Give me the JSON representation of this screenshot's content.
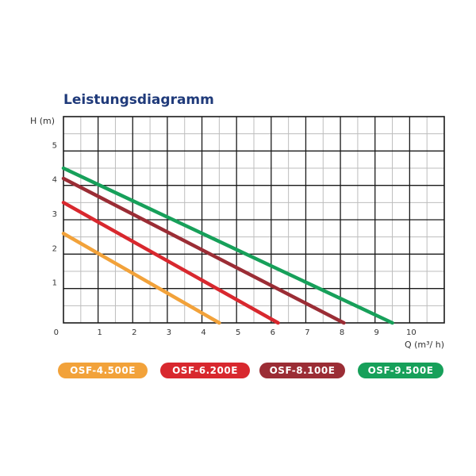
{
  "chart_data": {
    "type": "line",
    "title": "Leistungsdiagramm",
    "ylabel": "H (m)",
    "xlabel": "Q (m³/ h)",
    "xlim": [
      0,
      11
    ],
    "ylim": [
      0,
      6
    ],
    "x_ticks": [
      "0",
      "1",
      "2",
      "3",
      "4",
      "5",
      "6",
      "7",
      "8",
      "9",
      "10"
    ],
    "y_ticks": [
      "1",
      "2",
      "3",
      "4",
      "5"
    ],
    "grid": true,
    "legend_position": "bottom",
    "series": [
      {
        "name": "OSF-4.500E",
        "color": "#f2a23a",
        "x": [
          0,
          4.5
        ],
        "y": [
          2.6,
          0
        ]
      },
      {
        "name": "OSF-6.200E",
        "color": "#d8282e",
        "x": [
          0,
          6.2
        ],
        "y": [
          3.5,
          0
        ]
      },
      {
        "name": "OSF-8.100E",
        "color": "#9b2d35",
        "x": [
          0,
          8.1
        ],
        "y": [
          4.2,
          0
        ]
      },
      {
        "name": "OSF-9.500E",
        "color": "#17a05a",
        "x": [
          0,
          9.5
        ],
        "y": [
          4.5,
          0
        ]
      }
    ]
  }
}
